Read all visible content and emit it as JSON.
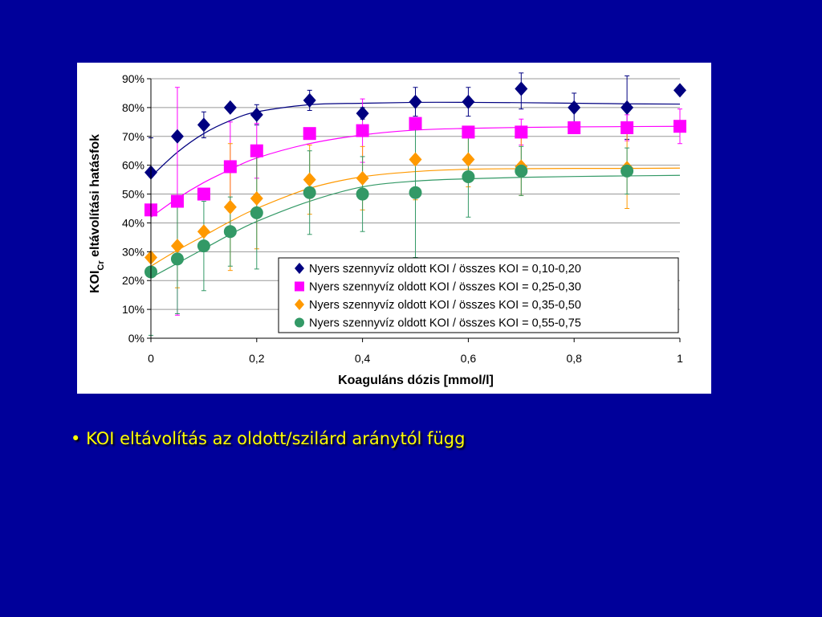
{
  "slide": {
    "background": "#00009a",
    "bullet_marker": "•",
    "bullet_text": "KOI eltávolítás az oldott/szilárd aránytól függ",
    "bullet_color": "#ffff00"
  },
  "chart_data": {
    "type": "scatter",
    "title": "",
    "xlabel": "Koaguláns dózis [mmol/l]",
    "ylabel_main": "KOI",
    "ylabel_sub": "Cr",
    "ylabel_rest": " eltávolítási hatásfok",
    "xlim": [
      0,
      1
    ],
    "ylim": [
      0,
      90
    ],
    "x_ticks": [
      0,
      0.2,
      0.4,
      0.6,
      0.8,
      1
    ],
    "x_tick_labels": [
      "0",
      "0,2",
      "0,4",
      "0,6",
      "0,8",
      "1"
    ],
    "y_ticks": [
      0,
      10,
      20,
      30,
      40,
      50,
      60,
      70,
      80,
      90
    ],
    "y_tick_labels": [
      "0%",
      "10%",
      "20%",
      "30%",
      "40%",
      "50%",
      "60%",
      "70%",
      "80%",
      "90%"
    ],
    "grid": "horizontal",
    "legend_position": "bottom-right",
    "series": [
      {
        "name": "Nyers szennyvíz oldott KOI / összes KOI = 0,10-0,20",
        "marker": "diamond",
        "color": "#000080",
        "x": [
          0,
          0.05,
          0.1,
          0.15,
          0.2,
          0.3,
          0.4,
          0.5,
          0.6,
          0.7,
          0.8,
          0.9,
          1.0
        ],
        "y": [
          57.5,
          70,
          74,
          80,
          77.5,
          82.5,
          78,
          82,
          82,
          86.5,
          80,
          80,
          86
        ],
        "err": [
          12,
          0,
          4.5,
          0,
          3.5,
          3.5,
          2,
          5,
          5,
          7,
          5,
          11,
          0
        ],
        "fit_y": [
          56,
          64.5,
          71,
          75.5,
          78.5,
          81,
          81.5,
          81.8,
          81.8,
          81.7,
          81.5,
          81.3,
          81.2
        ]
      },
      {
        "name": "Nyers szennyvíz oldott KOI / összes KOI = 0,25-0,30",
        "marker": "square",
        "color": "#ff00ff",
        "x": [
          0,
          0.05,
          0.1,
          0.15,
          0.2,
          0.3,
          0.4,
          0.5,
          0.6,
          0.7,
          0.8,
          0.9,
          1.0
        ],
        "y": [
          44.5,
          47.5,
          50,
          59.5,
          65,
          71,
          72,
          74.5,
          71.5,
          71.5,
          73,
          73,
          73.5
        ],
        "err": [
          0,
          39.5,
          0,
          15.5,
          9.5,
          0,
          11,
          0,
          0,
          4.5,
          1.5,
          4.5,
          6
        ],
        "fit_y": [
          42,
          48.5,
          54,
          58.5,
          62.5,
          67.5,
          70.5,
          72.2,
          72.8,
          73.1,
          73.3,
          73.4,
          73.5
        ]
      },
      {
        "name": "Nyers szennyvíz oldott KOI / összes KOI = 0,35-0,50",
        "marker": "diamond",
        "color": "#ff9900",
        "x": [
          0,
          0.05,
          0.1,
          0.15,
          0.2,
          0.3,
          0.4,
          0.5,
          0.6,
          0.7,
          0.8,
          0.9,
          1.0
        ],
        "y": [
          28,
          32,
          37,
          45.5,
          48.5,
          55,
          55.5,
          62,
          62,
          59.5,
          0,
          59,
          0
        ],
        "err": [
          0,
          14.5,
          0,
          22,
          17.5,
          12,
          11,
          14,
          9.5,
          10,
          0,
          14,
          0
        ],
        "show": [
          true,
          true,
          true,
          true,
          true,
          true,
          true,
          true,
          true,
          true,
          false,
          true,
          false
        ],
        "fit_y": [
          25,
          30.5,
          35.5,
          40.5,
          45,
          52,
          56,
          57.8,
          58.6,
          58.8,
          58.9,
          58.9,
          59
        ]
      },
      {
        "name": "Nyers szennyvíz oldott KOI / összes KOI = 0,55-0,75",
        "marker": "circle",
        "color": "#339966",
        "x": [
          0,
          0.05,
          0.1,
          0.15,
          0.2,
          0.3,
          0.4,
          0.5,
          0.6,
          0.7,
          0.8,
          0.9,
          1.0
        ],
        "y": [
          23,
          27.5,
          32,
          37,
          43.5,
          50.5,
          50,
          50.5,
          56,
          58,
          0,
          58,
          0
        ],
        "err": [
          22,
          19,
          15.5,
          12,
          19.5,
          14.5,
          13,
          22.5,
          14,
          8.5,
          0,
          8,
          0
        ],
        "show": [
          true,
          true,
          true,
          true,
          true,
          true,
          true,
          true,
          true,
          true,
          false,
          true,
          false
        ],
        "fit_y": [
          21,
          26,
          31,
          36,
          40.5,
          47.5,
          52.5,
          54.5,
          55.3,
          55.8,
          56.1,
          56.3,
          56.5
        ]
      }
    ]
  }
}
